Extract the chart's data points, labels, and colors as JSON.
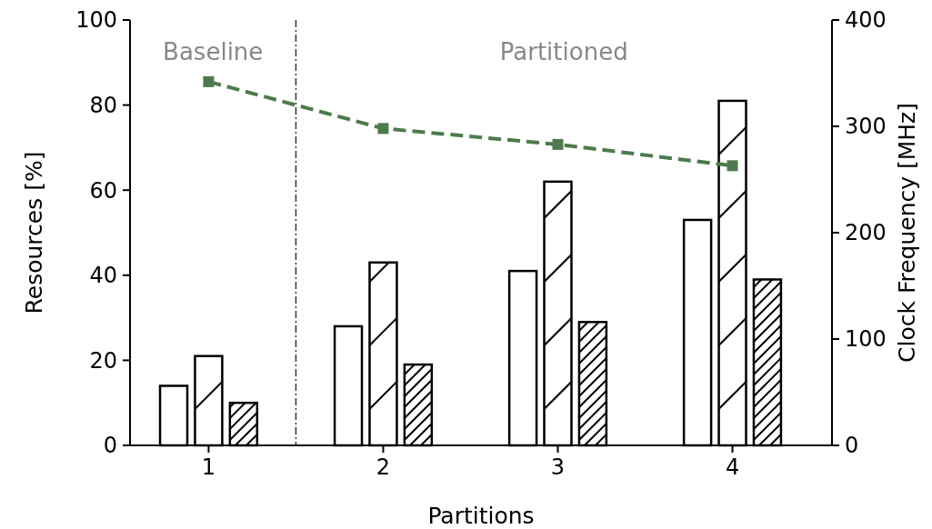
{
  "chart_data": {
    "type": "bar",
    "xlabel": "Partitions",
    "ylabel": "Resources [%]",
    "y2label": "Clock Frequency [MHz]",
    "x": [
      1,
      2,
      3,
      4
    ],
    "xlim": [
      0.55,
      4.57
    ],
    "xticks": [
      1,
      2,
      3,
      4
    ],
    "ylim": [
      0,
      100
    ],
    "yticks": [
      0,
      20,
      40,
      60,
      80,
      100
    ],
    "y2lim": [
      0,
      400
    ],
    "y2ticks": [
      0,
      100,
      200,
      300,
      400
    ],
    "series": [
      {
        "color": "#ffffff",
        "values": [
          14,
          28,
          41,
          53
        ]
      },
      {
        "color": "#ffffff",
        "values": [
          21,
          43,
          62,
          81
        ]
      },
      {
        "color": "#ffffff",
        "values": [
          10,
          19,
          29,
          39
        ]
      },
      {
        "type": "line",
        "axis": "y2",
        "color": "#4d7a4d",
        "values": [
          342,
          298,
          283,
          263
        ]
      }
    ],
    "marker": "square",
    "line_style": "dashed",
    "grid": false,
    "ref_lines": [
      {
        "axis": "x",
        "value": 1.5,
        "color": "#333333",
        "line_style": "dashdot"
      }
    ],
    "annotations": [
      "Baseline",
      "Partitioned"
    ]
  }
}
